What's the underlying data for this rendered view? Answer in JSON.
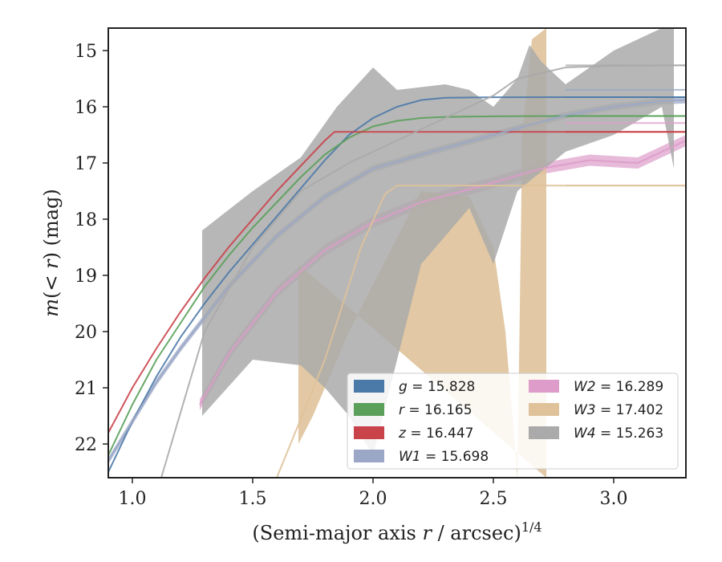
{
  "chart_data": {
    "type": "line",
    "xlabel_main": "(Semi-major axis ",
    "xlabel_var": "r",
    "xlabel_unit": " / arcsec)",
    "xlabel_sup": "1/4",
    "ylabel_prefix": "m(< ",
    "ylabel_var": "r",
    "ylabel_suffix": ") (mag)",
    "xlim": [
      0.9,
      3.3
    ],
    "ylim": [
      22.6,
      14.6
    ],
    "y_inverted": true,
    "xticks": [
      1.0,
      1.5,
      2.0,
      2.5,
      3.0
    ],
    "xtick_labels": [
      "1.0",
      "1.5",
      "2.0",
      "2.5",
      "3.0"
    ],
    "yticks": [
      15,
      16,
      17,
      18,
      19,
      20,
      21,
      22
    ],
    "ytick_labels": [
      "15",
      "16",
      "17",
      "18",
      "19",
      "20",
      "21",
      "22"
    ],
    "grid": false,
    "legend_position": "lower-right",
    "legend": [
      {
        "band": "g",
        "value": "15.828",
        "color": "#4c7aa8"
      },
      {
        "band": "r",
        "value": "16.165",
        "color": "#5aa05a"
      },
      {
        "band": "z",
        "value": "16.447",
        "color": "#c9434a"
      },
      {
        "band": "W1",
        "value": "15.698",
        "color": "#9aa7c6"
      },
      {
        "band": "W2",
        "value": "16.289",
        "color": "#dd9cc9"
      },
      {
        "band": "W3",
        "value": "17.402",
        "color": "#dfc29a"
      },
      {
        "band": "W4",
        "value": "15.263",
        "color": "#aaaaaa"
      }
    ],
    "series": [
      {
        "band": "g",
        "color": "#4c7aa8",
        "asymptote": 15.828,
        "x": [
          0.9,
          1.0,
          1.1,
          1.2,
          1.3,
          1.4,
          1.5,
          1.6,
          1.7,
          1.8,
          1.9,
          2.0,
          2.1,
          2.2,
          2.3,
          2.5,
          2.8,
          3.3
        ],
        "y": [
          22.5,
          21.6,
          20.8,
          20.1,
          19.5,
          18.95,
          18.45,
          17.95,
          17.45,
          16.95,
          16.5,
          16.2,
          16.0,
          15.88,
          15.84,
          15.83,
          15.828,
          15.828
        ]
      },
      {
        "band": "r",
        "color": "#5aa05a",
        "asymptote": 16.165,
        "x": [
          0.9,
          1.0,
          1.1,
          1.2,
          1.3,
          1.4,
          1.5,
          1.6,
          1.7,
          1.8,
          1.9,
          2.0,
          2.1,
          2.2,
          2.3,
          2.5,
          2.8,
          3.3
        ],
        "y": [
          22.2,
          21.3,
          20.5,
          19.85,
          19.2,
          18.65,
          18.15,
          17.7,
          17.25,
          16.85,
          16.55,
          16.35,
          16.25,
          16.2,
          16.18,
          16.17,
          16.165,
          16.165
        ]
      },
      {
        "band": "z",
        "color": "#c9434a",
        "asymptote": 16.447,
        "x": [
          0.9,
          1.0,
          1.1,
          1.2,
          1.3,
          1.4,
          1.5,
          1.6,
          1.7,
          1.8,
          1.84,
          3.3
        ],
        "y": [
          21.8,
          21.0,
          20.3,
          19.65,
          19.05,
          18.5,
          18.0,
          17.5,
          17.05,
          16.6,
          16.447,
          16.447
        ]
      },
      {
        "band": "W1",
        "color": "#9aa7c6",
        "asymptote": 15.698,
        "x": [
          0.9,
          1.0,
          1.1,
          1.2,
          1.4,
          1.6,
          1.8,
          2.0,
          2.2,
          2.5,
          2.8,
          3.0,
          3.2,
          3.3
        ],
        "y": [
          22.3,
          21.6,
          20.9,
          20.3,
          19.2,
          18.3,
          17.6,
          17.1,
          16.85,
          16.5,
          16.15,
          16.0,
          15.9,
          15.88
        ],
        "band_width": 0.06
      },
      {
        "band": "W2",
        "color": "#dd9cc9",
        "asymptote": 16.289,
        "x": [
          1.28,
          1.4,
          1.6,
          1.8,
          2.0,
          2.2,
          2.5,
          2.7,
          2.9,
          3.1,
          3.3
        ],
        "y": [
          21.3,
          20.4,
          19.3,
          18.55,
          18.05,
          17.7,
          17.35,
          17.1,
          16.95,
          17.0,
          16.6
        ],
        "band_width": 0.1
      },
      {
        "band": "W3",
        "color": "#dfc29a",
        "asymptote": 17.402,
        "x": [
          1.6,
          1.8,
          1.95,
          2.05,
          2.1,
          3.3
        ],
        "y": [
          22.6,
          20.5,
          18.5,
          17.55,
          17.402,
          17.402
        ],
        "band_lower": {
          "x": [
            1.69,
            1.69,
            1.75,
            1.85,
            1.9,
            2.2,
            2.4,
            2.5,
            2.55,
            2.6,
            2.6,
            2.62,
            2.66,
            2.72,
            2.72
          ],
          "y": [
            18.8,
            22.0,
            21.5,
            20.5,
            20.0,
            17.5,
            17.6,
            18.5,
            20.0,
            22.6,
            22.6,
            16.5,
            14.8,
            14.6,
            22.6
          ]
        }
      },
      {
        "band": "W4",
        "color": "#aaaaaa",
        "asymptote": 15.263,
        "x": [
          1.12,
          1.3,
          1.5,
          1.7,
          1.9,
          2.1,
          2.3,
          2.5,
          2.6,
          2.8,
          3.0,
          3.3
        ],
        "y": [
          22.6,
          20.0,
          18.5,
          17.5,
          17.0,
          16.6,
          16.2,
          15.8,
          15.5,
          15.3,
          15.27,
          15.263
        ],
        "band_upper": {
          "x": [
            1.29,
            1.5,
            1.7,
            1.85,
            2.0,
            2.1,
            2.3,
            2.4,
            2.5,
            2.6,
            2.65,
            2.7,
            2.8,
            3.0,
            3.2,
            3.25
          ],
          "y": [
            18.2,
            17.5,
            16.9,
            16.0,
            15.3,
            15.7,
            15.6,
            15.7,
            16.0,
            15.5,
            14.9,
            15.2,
            15.6,
            15.0,
            14.6,
            14.6
          ]
        },
        "band_lower": {
          "x": [
            1.29,
            1.5,
            1.7,
            1.8,
            1.9,
            2.0,
            2.1,
            2.2,
            2.3,
            2.4,
            2.5,
            2.6,
            2.8,
            3.0,
            3.2,
            3.25
          ],
          "y": [
            21.5,
            20.5,
            20.6,
            21.0,
            21.5,
            22.2,
            20.5,
            18.8,
            18.3,
            17.8,
            18.8,
            17.5,
            16.8,
            16.5,
            16.0,
            17.1
          ]
        }
      }
    ]
  }
}
